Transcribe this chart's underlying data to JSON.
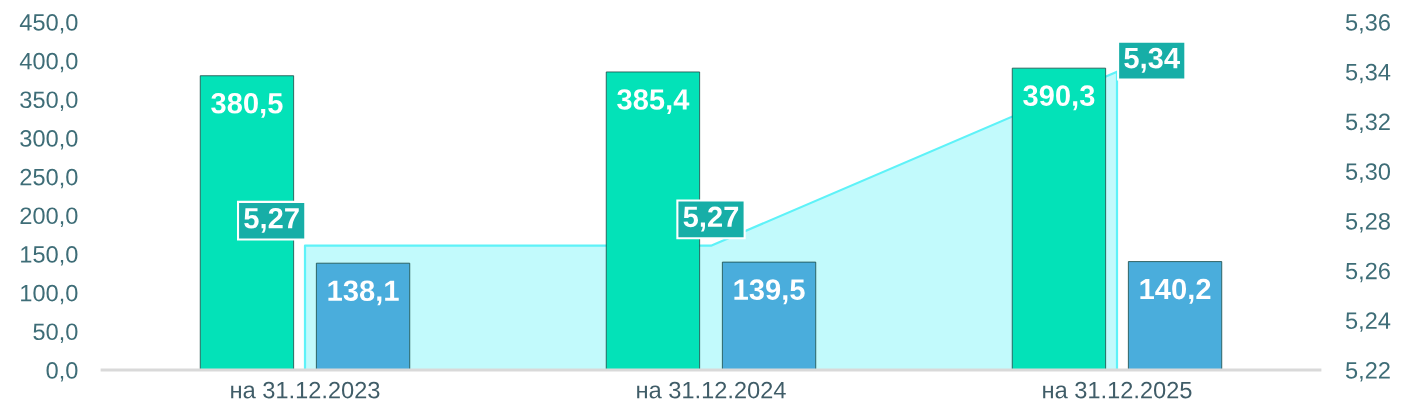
{
  "chart_data": {
    "type": "bar",
    "categories": [
      "на 31.12.2023",
      "на 31.12.2024",
      "на 31.12.2025"
    ],
    "series": [
      {
        "color": "#03e2b8",
        "values": [
          380.5,
          385.4,
          390.3
        ],
        "value_labels": [
          "380,5",
          "385,4",
          "390,3"
        ]
      },
      {
        "color": "#4aaddc",
        "values": [
          138.1,
          139.5,
          140.2
        ],
        "value_labels": [
          "138,1",
          "139,5",
          "140,2"
        ]
      },
      {
        "type": "area",
        "axis": "y2",
        "color": "#5ef2f8",
        "values": [
          5.27,
          5.27,
          5.34
        ],
        "value_labels": [
          "5,27",
          "5,27",
          "5,34"
        ]
      }
    ],
    "ylim": [
      0,
      450
    ],
    "yticks": [
      {
        "value": 0,
        "label": "0,0"
      },
      {
        "value": 50,
        "label": "50,0"
      },
      {
        "value": 100,
        "label": "100,0"
      },
      {
        "value": 150,
        "label": "150,0"
      },
      {
        "value": 200,
        "label": "200,0"
      },
      {
        "value": 250,
        "label": "250,0"
      },
      {
        "value": 300,
        "label": "300,0"
      },
      {
        "value": 350,
        "label": "350,0"
      },
      {
        "value": 400,
        "label": "400,0"
      },
      {
        "value": 450,
        "label": "450,0"
      }
    ],
    "y2lim": [
      5.22,
      5.36
    ],
    "y2ticks": [
      {
        "value": 5.22,
        "label": "5,22"
      },
      {
        "value": 5.24,
        "label": "5,24"
      },
      {
        "value": 5.26,
        "label": "5,26"
      },
      {
        "value": 5.28,
        "label": "5,28"
      },
      {
        "value": 5.3,
        "label": "5,30"
      },
      {
        "value": 5.32,
        "label": "5,32"
      },
      {
        "value": 5.34,
        "label": "5,34"
      },
      {
        "value": 5.36,
        "label": "5,36"
      }
    ]
  }
}
